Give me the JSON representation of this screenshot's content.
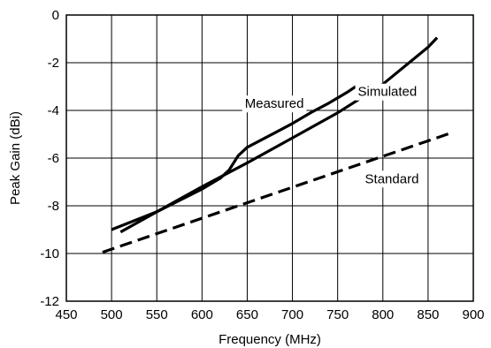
{
  "chart_data": {
    "type": "line",
    "title": "",
    "xlabel": "Frequency (MHz)",
    "ylabel": "Peak Gain (dBi)",
    "xlim": [
      450,
      900
    ],
    "ylim": [
      -12,
      0
    ],
    "xticks": [
      450,
      500,
      550,
      600,
      650,
      700,
      750,
      800,
      850,
      900
    ],
    "yticks": [
      0,
      -2,
      -4,
      -6,
      -8,
      -10,
      -12
    ],
    "grid": true,
    "series": [
      {
        "name": "Measured",
        "style": "solid",
        "color": "#000000",
        "x": [
          500,
          550,
          600,
          620,
          630,
          640,
          650,
          680,
          700,
          720,
          740,
          760,
          770
        ],
        "y": [
          -9.0,
          -8.25,
          -7.3,
          -6.85,
          -6.5,
          -5.9,
          -5.55,
          -4.95,
          -4.55,
          -4.1,
          -3.7,
          -3.25,
          -3.0
        ]
      },
      {
        "name": "Simulated",
        "style": "solid",
        "color": "#000000",
        "x": [
          510,
          550,
          600,
          650,
          700,
          750,
          800,
          850,
          860
        ],
        "y": [
          -9.1,
          -8.25,
          -7.2,
          -6.2,
          -5.15,
          -4.1,
          -2.9,
          -1.35,
          -0.95
        ]
      },
      {
        "name": "Standard",
        "style": "dashed",
        "color": "#000000",
        "x": [
          490,
          875
        ],
        "y": [
          -9.95,
          -4.95
        ]
      }
    ]
  }
}
